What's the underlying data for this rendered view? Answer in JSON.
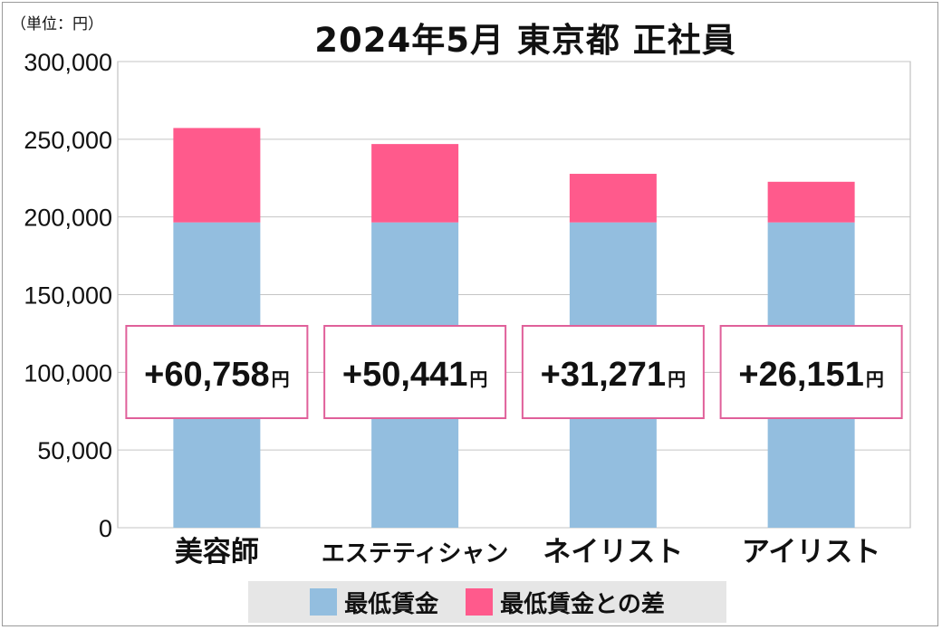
{
  "unit_label": "（単位：円）",
  "title": "2024年5月 東京都 正社員",
  "chart_data": {
    "type": "bar",
    "stacked": true,
    "categories": [
      "美容師",
      "エステティシャン",
      "ネイリスト",
      "アイリスト"
    ],
    "series": [
      {
        "name": "最低賃金",
        "color": "#93bedf",
        "values": [
          196480,
          196480,
          196480,
          196480
        ]
      },
      {
        "name": "最低賃金との差",
        "color": "#ff5a8c",
        "values": [
          60758,
          50441,
          31271,
          26151
        ]
      }
    ],
    "ylim": [
      0,
      300000
    ],
    "yticks": [
      0,
      50000,
      100000,
      150000,
      200000,
      250000,
      300000
    ],
    "ytick_labels": [
      "0",
      "50,000",
      "100,000",
      "150,000",
      "200,000",
      "250,000",
      "300,000"
    ],
    "grid": true,
    "difference_labels": [
      {
        "amount": "+60,758",
        "unit": "円"
      },
      {
        "amount": "+50,441",
        "unit": "円"
      },
      {
        "amount": "+31,271",
        "unit": "円"
      },
      {
        "amount": "+26,151",
        "unit": "円"
      }
    ],
    "legend_position": "bottom"
  }
}
